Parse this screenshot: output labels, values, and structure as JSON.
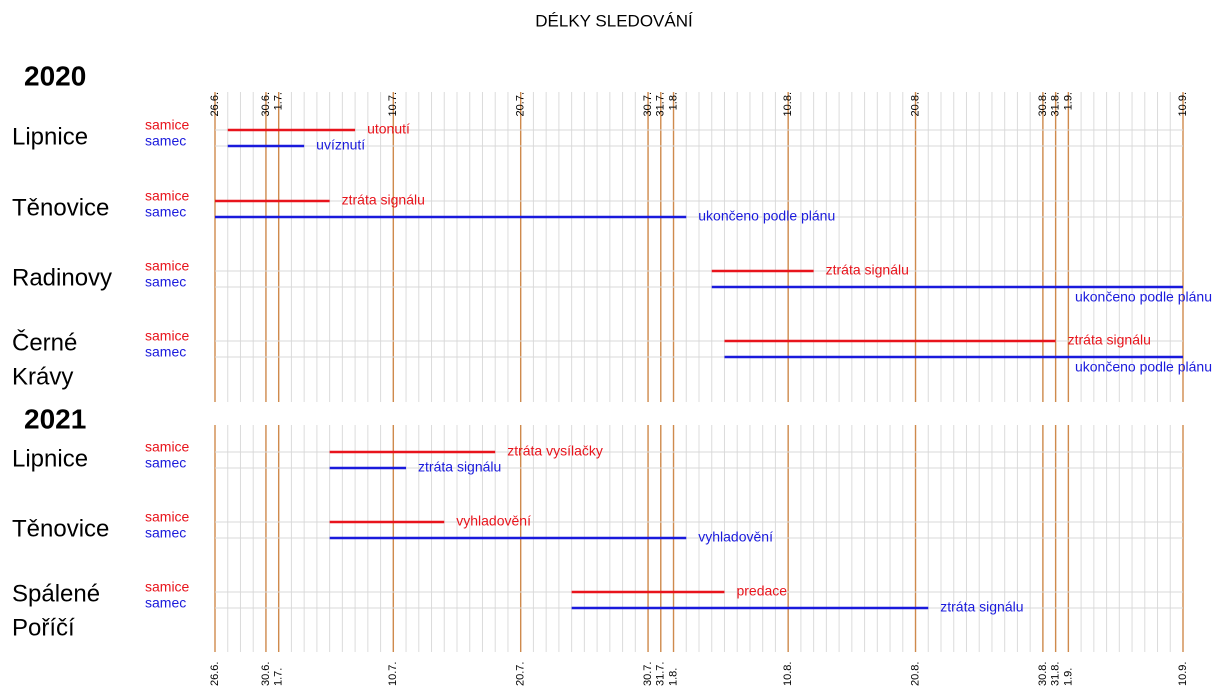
{
  "chart_data": {
    "type": "timeline",
    "title": "DÉLKY SLEDOVÁNÍ",
    "xlim": [
      0,
      76
    ],
    "xticks": [
      {
        "value": 0,
        "label": "26.6."
      },
      {
        "value": 4,
        "label": "30.6."
      },
      {
        "value": 5,
        "label": "1.7."
      },
      {
        "value": 14,
        "label": "10.7."
      },
      {
        "value": 24,
        "label": "20.7."
      },
      {
        "value": 34,
        "label": "30.7."
      },
      {
        "value": 35,
        "label": "31.7."
      },
      {
        "value": 36,
        "label": "1.8."
      },
      {
        "value": 45,
        "label": "10.8."
      },
      {
        "value": 55,
        "label": "20.8."
      },
      {
        "value": 65,
        "label": "30.8."
      },
      {
        "value": 66,
        "label": "31.8."
      },
      {
        "value": 67,
        "label": "1.9."
      },
      {
        "value": 76,
        "label": "10.9."
      }
    ],
    "grid": true,
    "panels": [
      {
        "year": "2020",
        "groups": [
          {
            "name": [
              "Lipnice"
            ],
            "bars": [
              {
                "sex": "samice",
                "color": "#e8141c",
                "start": 1,
                "end": 11,
                "label": "utonutí"
              },
              {
                "sex": "samec",
                "color": "#1a1adc",
                "start": 1,
                "end": 7,
                "label": "uvíznutí"
              }
            ]
          },
          {
            "name": [
              "Těnovice"
            ],
            "bars": [
              {
                "sex": "samice",
                "color": "#e8141c",
                "start": 0,
                "end": 9,
                "label": "ztráta signálu"
              },
              {
                "sex": "samec",
                "color": "#1a1adc",
                "start": 0,
                "end": 37,
                "label": "ukončeno podle plánu"
              }
            ]
          },
          {
            "name": [
              "Radinovy"
            ],
            "bars": [
              {
                "sex": "samice",
                "color": "#e8141c",
                "start": 39,
                "end": 47,
                "label": "ztráta signálu"
              },
              {
                "sex": "samec",
                "color": "#1a1adc",
                "start": 39,
                "end": 76,
                "label": "ukončeno podle plánu"
              }
            ]
          },
          {
            "name": [
              "Černé",
              "Krávy"
            ],
            "bars": [
              {
                "sex": "samice",
                "color": "#e8141c",
                "start": 40,
                "end": 66,
                "label": "ztráta signálu"
              },
              {
                "sex": "samec",
                "color": "#1a1adc",
                "start": 40,
                "end": 76,
                "label": "ukončeno podle plánu"
              }
            ]
          }
        ]
      },
      {
        "year": "2021",
        "groups": [
          {
            "name": [
              "Lipnice"
            ],
            "bars": [
              {
                "sex": "samice",
                "color": "#e8141c",
                "start": 9,
                "end": 22,
                "label": "ztráta vysílačky"
              },
              {
                "sex": "samec",
                "color": "#1a1adc",
                "start": 9,
                "end": 15,
                "label": "ztráta signálu"
              }
            ]
          },
          {
            "name": [
              "Těnovice"
            ],
            "bars": [
              {
                "sex": "samice",
                "color": "#e8141c",
                "start": 9,
                "end": 18,
                "label": "vyhladovění"
              },
              {
                "sex": "samec",
                "color": "#1a1adc",
                "start": 9,
                "end": 37,
                "label": "vyhladovění"
              }
            ]
          },
          {
            "name": [
              "Spálené",
              "Poříčí"
            ],
            "bars": [
              {
                "sex": "samice",
                "color": "#e8141c",
                "start": 28,
                "end": 40,
                "label": "predace"
              },
              {
                "sex": "samec",
                "color": "#1a1adc",
                "start": 28,
                "end": 56,
                "label": "ztráta signálu"
              }
            ]
          }
        ]
      }
    ]
  }
}
